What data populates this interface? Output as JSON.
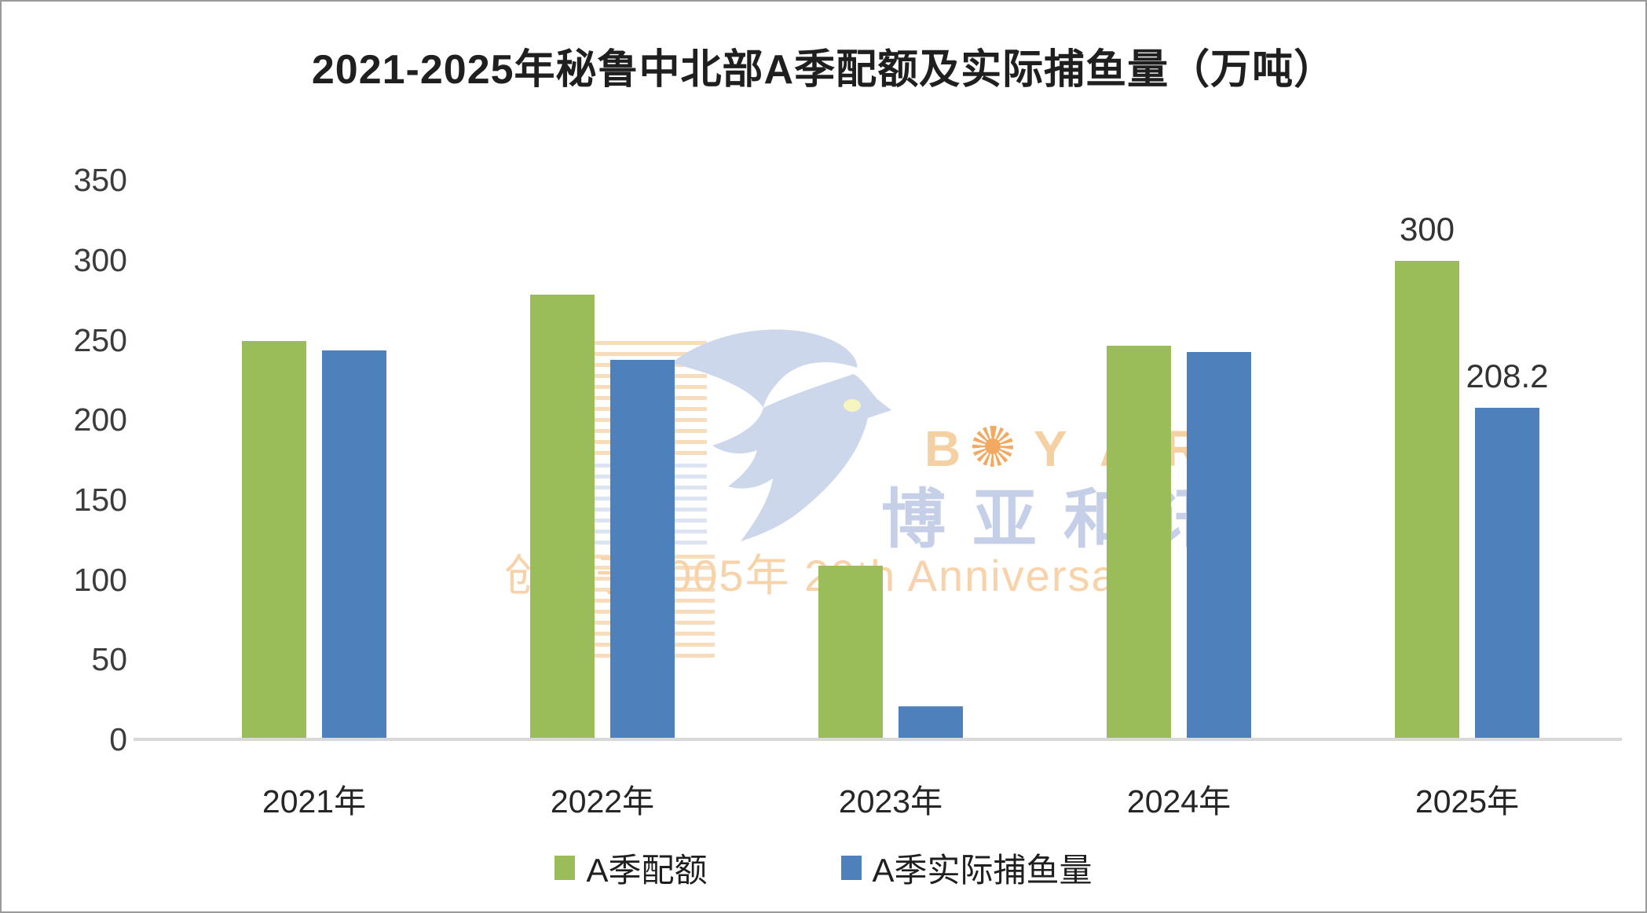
{
  "title": "2021-2025年秘鲁中北部A季配额及实际捕鱼量（万吨）",
  "chart_data": {
    "type": "bar",
    "title": "2021-2025年秘鲁中北部A季配额及实际捕鱼量（万吨）",
    "categories": [
      "2021年",
      "2022年",
      "2023年",
      "2024年",
      "2025年"
    ],
    "series": [
      {
        "name": "A季配额",
        "color": "#9ABC59",
        "values": [
          250,
          279,
          109,
          247,
          300
        ]
      },
      {
        "name": "A季实际捕鱼量",
        "color": "#4E80BC",
        "values": [
          244,
          238,
          21,
          243,
          208.2
        ]
      }
    ],
    "bar_labels": [
      {
        "series": 0,
        "category_index": 4,
        "text": "300"
      },
      {
        "series": 1,
        "category_index": 4,
        "text": "208.2"
      }
    ],
    "ylim": [
      0,
      350
    ],
    "yticks": [
      0,
      50,
      100,
      150,
      200,
      250,
      300,
      350
    ],
    "grid": false,
    "legend_position": "bottom",
    "axis_line_color": "#D8D8D8",
    "tick_label_color": "#3C3C3C"
  },
  "watermark": {
    "brand_latin_letters": [
      "B",
      "Y",
      "A",
      "R"
    ],
    "brand_cjk": "博亚和讯",
    "anniversary": "创立于2005年 20th Anniversary",
    "colors": {
      "bird": "#CDD7EB",
      "latin_letters": "#F5D0A2",
      "cjk_text": "#C5CFE7",
      "anniversary_text": "#F8D2A8",
      "sun": "#F4A963",
      "bird_eye": "#F5F5C0"
    }
  }
}
